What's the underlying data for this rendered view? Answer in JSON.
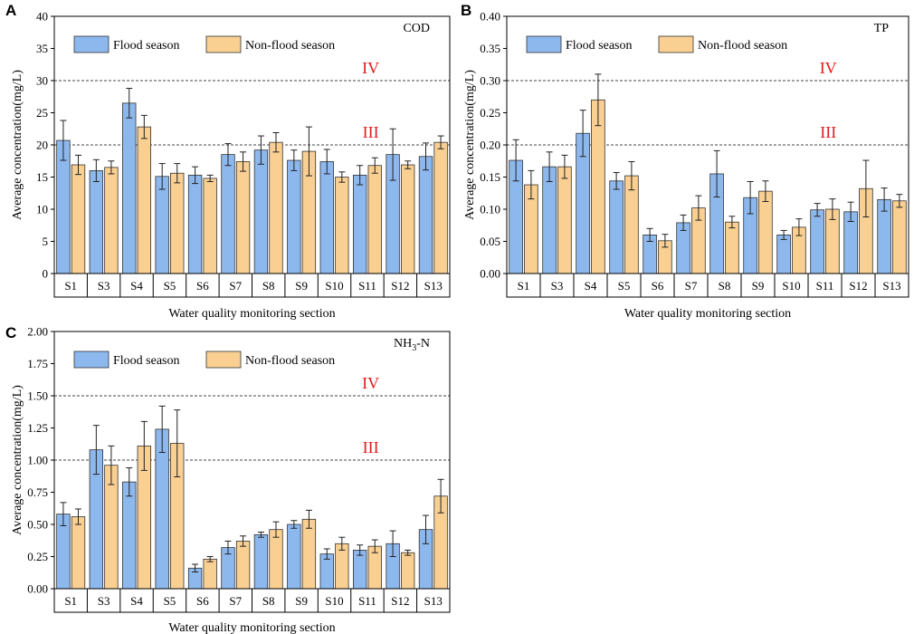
{
  "legend": {
    "flood": "Flood season",
    "nonflood": "Non-flood season"
  },
  "colors": {
    "flood": "#8db8ee",
    "nonflood": "#f9cf92",
    "refname": "#e31a1c"
  },
  "chart_data": [
    {
      "panel": "A",
      "type": "bar",
      "title": "COD",
      "xlabel": "Water quality monitoring section",
      "ylabel": "Average concentration(mg/L)",
      "ylim": [
        0,
        40
      ],
      "yticks": [
        "0",
        "5",
        "10",
        "15",
        "20",
        "25",
        "30",
        "35",
        "40"
      ],
      "categories": [
        "S1",
        "S3",
        "S4",
        "S5",
        "S6",
        "S7",
        "S8",
        "S9",
        "S10",
        "S11",
        "S12",
        "S13"
      ],
      "series": [
        {
          "name": "Flood season",
          "values": [
            20.7,
            16.0,
            26.5,
            15.1,
            15.3,
            18.5,
            19.2,
            17.6,
            17.4,
            15.3,
            18.5,
            18.2
          ],
          "errors": [
            3.1,
            1.7,
            2.3,
            2.0,
            1.3,
            1.7,
            2.2,
            1.6,
            1.9,
            1.5,
            4.0,
            2.1
          ]
        },
        {
          "name": "Non-flood season",
          "values": [
            16.9,
            16.5,
            22.8,
            15.6,
            14.8,
            17.4,
            20.4,
            19.0,
            15.0,
            16.8,
            16.9,
            20.4
          ],
          "errors": [
            1.5,
            1.0,
            1.8,
            1.5,
            0.5,
            1.5,
            1.5,
            3.8,
            0.8,
            1.2,
            0.6,
            1.0
          ]
        }
      ],
      "ref_lines": [
        {
          "name": "IV",
          "value": 30
        },
        {
          "name": "III",
          "value": 20
        }
      ]
    },
    {
      "panel": "B",
      "type": "bar",
      "title": "TP",
      "xlabel": "Water quality monitoring section",
      "ylabel": "Average concentration(mg/L)",
      "ylim": [
        0,
        0.4
      ],
      "yticks": [
        "0.00",
        "0.05",
        "0.10",
        "0.15",
        "0.20",
        "0.25",
        "0.30",
        "0.35",
        "0.40"
      ],
      "categories": [
        "S1",
        "S3",
        "S4",
        "S5",
        "S6",
        "S7",
        "S8",
        "S9",
        "S10",
        "S11",
        "S12",
        "S13"
      ],
      "series": [
        {
          "name": "Flood season",
          "values": [
            0.176,
            0.166,
            0.218,
            0.144,
            0.06,
            0.079,
            0.155,
            0.118,
            0.06,
            0.099,
            0.096,
            0.115
          ],
          "errors": [
            0.032,
            0.023,
            0.036,
            0.013,
            0.01,
            0.012,
            0.036,
            0.025,
            0.007,
            0.01,
            0.015,
            0.018
          ]
        },
        {
          "name": "Non-flood season",
          "values": [
            0.138,
            0.166,
            0.27,
            0.152,
            0.051,
            0.102,
            0.08,
            0.128,
            0.072,
            0.1,
            0.132,
            0.113
          ],
          "errors": [
            0.022,
            0.018,
            0.04,
            0.022,
            0.01,
            0.019,
            0.009,
            0.016,
            0.013,
            0.016,
            0.044,
            0.01
          ]
        }
      ],
      "ref_lines": [
        {
          "name": "IV",
          "value": 0.3
        },
        {
          "name": "III",
          "value": 0.2
        }
      ]
    },
    {
      "panel": "C",
      "type": "bar",
      "title": "NH",
      "title_sub": "3",
      "title_tail": "-N",
      "xlabel": "Water quality monitoring section",
      "ylabel": "Average concentration(mg/L)",
      "ylim": [
        0,
        2.0
      ],
      "yticks": [
        "0.00",
        "0.25",
        "0.50",
        "0.75",
        "1.00",
        "1.25",
        "1.50",
        "1.75",
        "2.00"
      ],
      "categories": [
        "S1",
        "S3",
        "S4",
        "S5",
        "S6",
        "S7",
        "S8",
        "S9",
        "S10",
        "S11",
        "S12",
        "S13"
      ],
      "series": [
        {
          "name": "Flood season",
          "values": [
            0.58,
            1.08,
            0.83,
            1.24,
            0.16,
            0.32,
            0.42,
            0.5,
            0.27,
            0.3,
            0.35,
            0.46
          ],
          "errors": [
            0.09,
            0.19,
            0.11,
            0.18,
            0.03,
            0.05,
            0.02,
            0.03,
            0.04,
            0.04,
            0.1,
            0.11
          ]
        },
        {
          "name": "Non-flood season",
          "values": [
            0.56,
            0.96,
            1.11,
            1.13,
            0.23,
            0.37,
            0.46,
            0.54,
            0.35,
            0.33,
            0.28,
            0.72
          ],
          "errors": [
            0.06,
            0.15,
            0.19,
            0.26,
            0.02,
            0.04,
            0.06,
            0.07,
            0.05,
            0.05,
            0.02,
            0.13
          ]
        }
      ],
      "ref_lines": [
        {
          "name": "IV",
          "value": 1.5
        },
        {
          "name": "III",
          "value": 1.0
        }
      ]
    }
  ]
}
